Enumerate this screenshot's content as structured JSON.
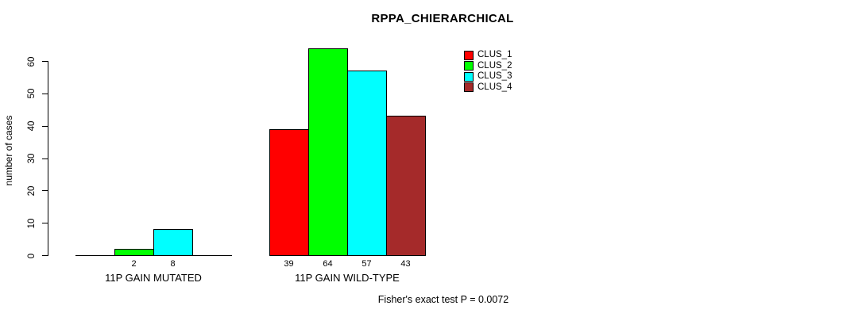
{
  "chart_data": {
    "type": "bar",
    "title": "RPPA_CHIERARCHICAL",
    "ylabel": "number of cases",
    "ylim": [
      0,
      60
    ],
    "yticks": [
      0,
      10,
      20,
      30,
      40,
      50,
      60
    ],
    "grid": false,
    "legend_position": "top-right",
    "categories": [
      "11P GAIN MUTATED",
      "11P GAIN WILD-TYPE"
    ],
    "series": [
      {
        "name": "CLUS_1",
        "color": "#ff0000",
        "values": [
          0,
          39
        ]
      },
      {
        "name": "CLUS_2",
        "color": "#00ff00",
        "values": [
          2,
          64
        ]
      },
      {
        "name": "CLUS_3",
        "color": "#00ffff",
        "values": [
          8,
          57
        ]
      },
      {
        "name": "CLUS_4",
        "color": "#a52a2a",
        "values": [
          0,
          43
        ]
      }
    ],
    "bar_labels": [
      [
        "",
        "2",
        "8",
        ""
      ],
      [
        "39",
        "64",
        "57",
        "43"
      ]
    ],
    "footnote": "Fisher's exact test P = 0.0072"
  }
}
